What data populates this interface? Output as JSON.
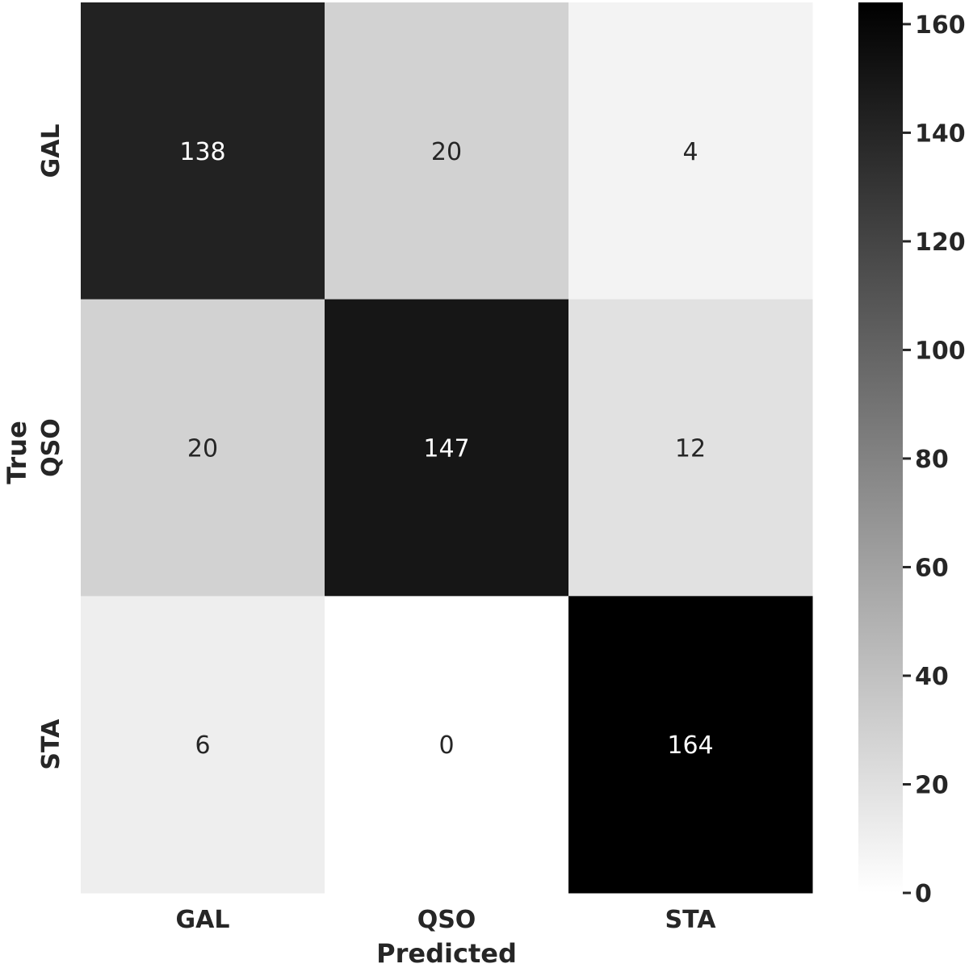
{
  "chart_data": {
    "type": "heatmap",
    "title": "",
    "xlabel": "Predicted",
    "ylabel": "True",
    "x_categories": [
      "GAL",
      "QSO",
      "STA"
    ],
    "y_categories": [
      "GAL",
      "QSO",
      "STA"
    ],
    "values": [
      [
        138,
        20,
        4
      ],
      [
        20,
        147,
        12
      ],
      [
        6,
        0,
        164
      ]
    ],
    "colorbar": {
      "range": [
        0,
        164
      ],
      "ticks": [
        0,
        20,
        40,
        60,
        80,
        100,
        120,
        140,
        160
      ],
      "colormap": "Greys",
      "low_color": "#ffffff",
      "high_color": "#000000"
    },
    "annotation_colors": {
      "on_light": "#262626",
      "on_dark": "#ffffff"
    },
    "grid": false,
    "legend": "colorbar-right"
  }
}
